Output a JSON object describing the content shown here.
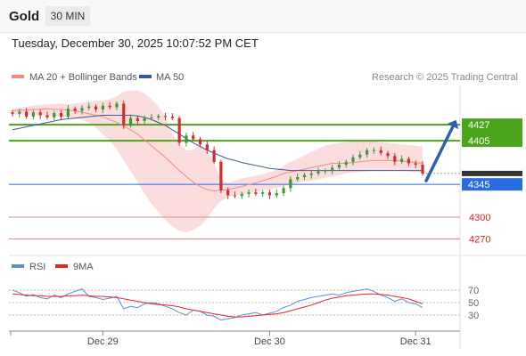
{
  "header": {
    "title": "Gold",
    "timeframe": "30 MIN"
  },
  "datetime": "Tuesday, December 30, 2025 10:07:52 PM CET",
  "copyright": "Research © 2025 Trading Central",
  "chart_data": [
    {
      "type": "candlestick",
      "legend": [
        {
          "label": "MA 20 + Bollinger Bands",
          "color": "#f28b82"
        },
        {
          "label": "MA 50",
          "color": "#3d5a98"
        }
      ],
      "ylim": [
        4256,
        4476
      ],
      "levels": [
        {
          "value": 4427,
          "label": "4427",
          "color": "#4ca31c",
          "kind": "resistance"
        },
        {
          "value": 4405,
          "label": "4405",
          "color": "#4ca31c",
          "kind": "resistance"
        },
        {
          "value": 4345,
          "label": "4345",
          "color": "#2a6be0",
          "kind": "pivot"
        },
        {
          "value": 4300,
          "label": "4300",
          "color": "#e08888",
          "kind": "support"
        },
        {
          "value": 4270,
          "label": "4270",
          "color": "#e08888",
          "kind": "support"
        }
      ],
      "last_price": 4360,
      "target_arrow": {
        "from": 4350,
        "to": 4427
      },
      "x_ticks": [
        {
          "i": 13,
          "label": "Dec 29"
        },
        {
          "i": 37,
          "label": "Dec 30"
        },
        {
          "i": 58,
          "label": "Dec 31"
        }
      ],
      "x_count": 60,
      "close": [
        4442,
        4445,
        4438,
        4444,
        4440,
        4437,
        4443,
        4438,
        4449,
        4446,
        4450,
        4452,
        4448,
        4453,
        4451,
        4456,
        4426,
        4436,
        4432,
        4436,
        4437,
        4439,
        4438,
        4436,
        4402,
        4412,
        4407,
        4400,
        4392,
        4376,
        4337,
        4330,
        4329,
        4332,
        4334,
        4332,
        4334,
        4330,
        4333,
        4340,
        4352,
        4355,
        4358,
        4360,
        4363,
        4364,
        4368,
        4372,
        4376,
        4382,
        4386,
        4392,
        4392,
        4388,
        4384,
        4376,
        4380,
        4374,
        4372,
        4360
      ],
      "ma20": [
        4446,
        4447,
        4447,
        4448,
        4448,
        4449,
        4448,
        4448,
        4447,
        4446,
        4444,
        4442,
        4440,
        4438,
        4434,
        4430,
        4425,
        4420,
        4414,
        4406,
        4398,
        4390,
        4382,
        4373,
        4364,
        4356,
        4348,
        4342,
        4338,
        4336,
        4337,
        4338,
        4340,
        4342,
        4345,
        4347,
        4350,
        4353,
        4356,
        4360,
        4362,
        4364,
        4366,
        4368,
        4370,
        4372,
        4374,
        4374,
        4374,
        4375,
        4376,
        4377,
        4378,
        4378,
        4378,
        4378,
        4377,
        4376,
        4375,
        4374
      ],
      "bb_upper": [
        4449,
        4450,
        4452,
        4453,
        4454,
        4455,
        4456,
        4456,
        4455,
        4456,
        4457,
        4459,
        4460,
        4460,
        4462,
        4466,
        4472,
        4474,
        4474,
        4470,
        4462,
        4452,
        4438,
        4414,
        4400,
        4392,
        4392,
        4400,
        4392,
        4374,
        4352,
        4347,
        4350,
        4353,
        4355,
        4357,
        4359,
        4362,
        4365,
        4370,
        4376,
        4380,
        4385,
        4390,
        4394,
        4398,
        4400,
        4402,
        4403,
        4404,
        4404,
        4404,
        4404,
        4403,
        4402,
        4401,
        4400,
        4399,
        4398,
        4397
      ],
      "bb_lower": [
        4441,
        4441,
        4441,
        4440,
        4440,
        4440,
        4439,
        4438,
        4437,
        4436,
        4434,
        4430,
        4423,
        4414,
        4405,
        4393,
        4378,
        4363,
        4348,
        4332,
        4318,
        4307,
        4296,
        4287,
        4281,
        4279,
        4282,
        4288,
        4298,
        4312,
        4322,
        4328,
        4330,
        4331,
        4333,
        4335,
        4337,
        4339,
        4340,
        4342,
        4345,
        4347,
        4349,
        4350,
        4352,
        4354,
        4356,
        4358,
        4360,
        4361,
        4362,
        4363,
        4364,
        4364,
        4364,
        4364,
        4364,
        4363,
        4362,
        4361
      ],
      "ma50": [
        4420,
        4422,
        4424,
        4426,
        4428,
        4430,
        4432,
        4434,
        4435,
        4436,
        4437,
        4438,
        4439,
        4440,
        4440,
        4440,
        4440,
        4440,
        4439,
        4437,
        4434,
        4430,
        4426,
        4420,
        4414,
        4408,
        4402,
        4397,
        4392,
        4388,
        4384,
        4380,
        4378,
        4375,
        4373,
        4371,
        4369,
        4367,
        4366,
        4365,
        4364,
        4364,
        4364,
        4364,
        4364,
        4364,
        4364,
        4364,
        4364,
        4364,
        4364,
        4364,
        4364,
        4364,
        4364,
        4364,
        4364,
        4364,
        4364,
        4364
      ]
    },
    {
      "type": "line",
      "legend": [
        {
          "label": "RSI",
          "color": "#5b8fd6"
        },
        {
          "label": "9MA",
          "color": "#e8232a"
        }
      ],
      "ylim": [
        10,
        90
      ],
      "y_ticks": [
        70,
        50,
        30
      ],
      "rsi": [
        70,
        66,
        60,
        63,
        58,
        56,
        62,
        58,
        64,
        68,
        72,
        60,
        58,
        55,
        57,
        60,
        40,
        44,
        42,
        48,
        50,
        48,
        44,
        40,
        34,
        30,
        38,
        36,
        30,
        28,
        22,
        24,
        26,
        30,
        32,
        34,
        30,
        33,
        36,
        42,
        46,
        52,
        55,
        58,
        60,
        62,
        64,
        62,
        66,
        68,
        70,
        72,
        68,
        62,
        58,
        52,
        56,
        50,
        48,
        42
      ],
      "ma9": [
        64,
        63,
        62,
        61,
        61,
        60,
        60,
        60,
        61,
        61,
        62,
        61,
        60,
        60,
        59,
        58,
        56,
        54,
        52,
        50,
        48,
        47,
        46,
        45,
        43,
        40,
        38,
        36,
        34,
        32,
        30,
        28,
        27,
        27,
        28,
        29,
        30,
        31,
        32,
        34,
        37,
        40,
        43,
        46,
        50,
        54,
        57,
        59,
        61,
        62,
        63,
        64,
        64,
        63,
        62,
        60,
        58,
        56,
        52,
        48
      ]
    }
  ]
}
